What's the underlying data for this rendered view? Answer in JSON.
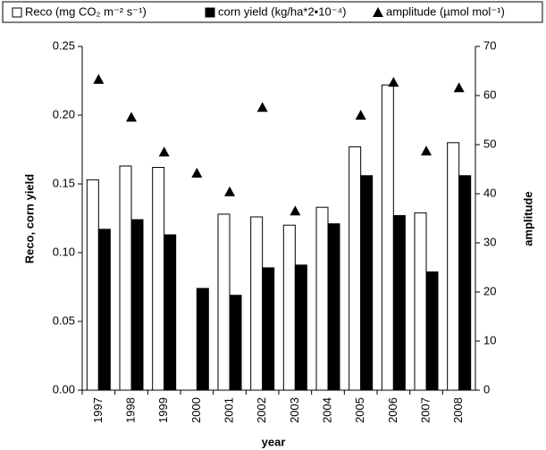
{
  "chart_data": {
    "type": "bar",
    "categories": [
      "1997",
      "1998",
      "1999",
      "2000",
      "2001",
      "2002",
      "2003",
      "2004",
      "2005",
      "2006",
      "2007",
      "2008"
    ],
    "series": [
      {
        "name": "Reco (mg CO₂ m⁻² s⁻¹)",
        "color": "#ffffff",
        "values": [
          0.153,
          0.163,
          0.162,
          null,
          0.128,
          0.126,
          0.12,
          0.133,
          0.177,
          0.222,
          0.129,
          0.18
        ]
      },
      {
        "name": "corn yield (kg/ha*2•10⁻⁴)",
        "color": "#000000",
        "values": [
          0.117,
          0.124,
          0.113,
          0.074,
          0.069,
          0.089,
          0.091,
          0.121,
          0.156,
          0.127,
          0.086,
          0.156
        ]
      },
      {
        "name": "amplitude (µmol mol⁻¹)",
        "color": "#000000",
        "type": "scatter",
        "axis": "y2",
        "values": [
          63.3,
          55.6,
          48.5,
          44.2,
          40.4,
          57.6,
          36.5,
          null,
          56.0,
          62.7,
          48.7,
          61.6
        ]
      }
    ],
    "xlabel": "year",
    "ylabel": "Reco, corn yield",
    "y2label": "amplitude",
    "ylim": [
      0,
      0.25
    ],
    "yticks": [
      {
        "value": 0,
        "label": "0.00"
      },
      0.05,
      {
        "value": 0.1,
        "label": "0.10"
      },
      0.15,
      {
        "value": 0.2,
        "label": "0.20"
      },
      0.25
    ],
    "y2lim": [
      0,
      70
    ],
    "y2ticks": [
      0,
      10,
      20,
      30,
      40,
      50,
      60,
      70
    ],
    "legend": "top"
  }
}
